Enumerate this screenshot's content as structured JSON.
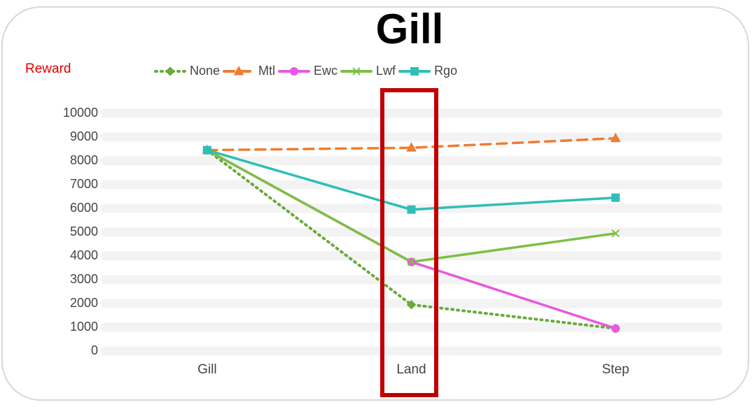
{
  "chart_data": {
    "type": "line",
    "title": "Gill",
    "y_axis_label": "Reward",
    "categories": [
      "Gill",
      "Land",
      "Step"
    ],
    "series": [
      {
        "name": "None",
        "color": "#6aaa3a",
        "line_style": "dotted",
        "marker": "diamond",
        "values": [
          8450,
          1950,
          950
        ]
      },
      {
        "name": "Mtl",
        "color": "#ed7d31",
        "line_style": "dashed",
        "marker": "triangle",
        "values": [
          8450,
          8550,
          8950
        ]
      },
      {
        "name": "Ewc",
        "color": "#e858e0",
        "line_style": "solid",
        "marker": "circle",
        "values": [
          8450,
          3750,
          950
        ]
      },
      {
        "name": "Lwf",
        "color": "#7dbf44",
        "line_style": "solid",
        "marker": "x",
        "values": [
          8450,
          3750,
          4950
        ]
      },
      {
        "name": "Rgo",
        "color": "#2ebfb5",
        "line_style": "solid",
        "marker": "square",
        "values": [
          8450,
          5950,
          6450
        ]
      }
    ],
    "ylim": [
      0,
      10000
    ],
    "yticks": [
      0,
      1000,
      2000,
      3000,
      4000,
      5000,
      6000,
      7000,
      8000,
      9000,
      10000
    ],
    "grid": true,
    "legend": "top"
  }
}
